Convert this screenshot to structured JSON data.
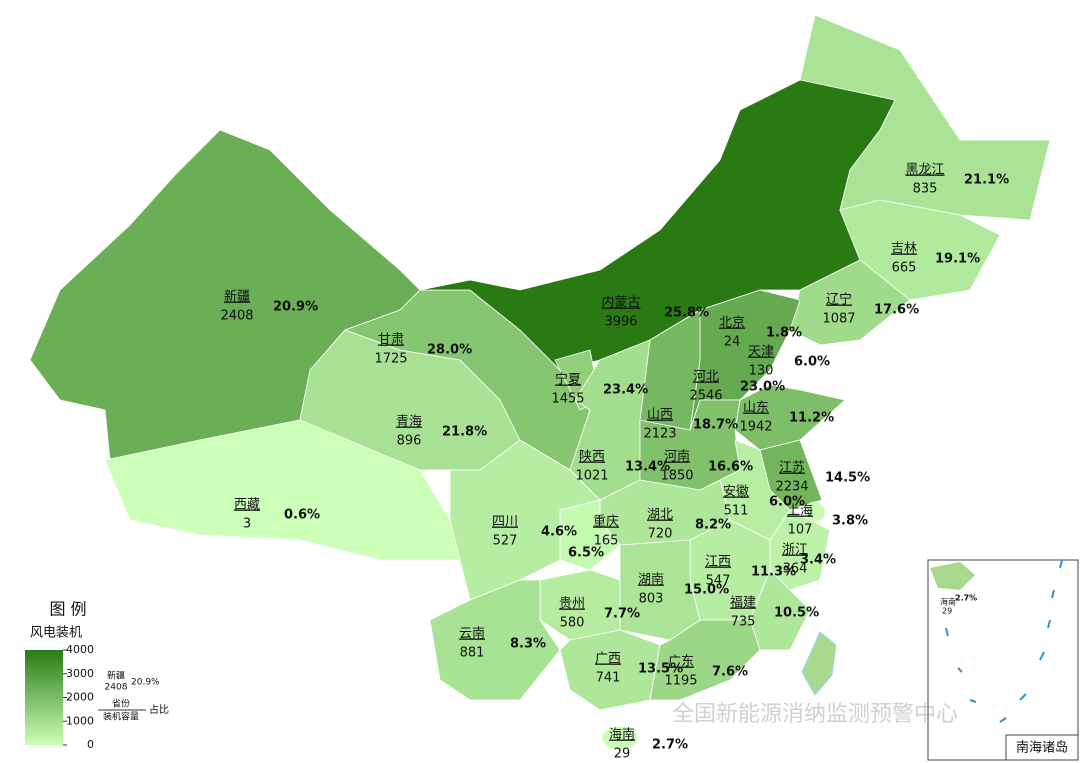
{
  "map": {
    "provinces": [
      {
        "name": "新疆",
        "capacity": 2408,
        "share": "20.9%"
      },
      {
        "name": "西藏",
        "capacity": 3,
        "share": "0.6%"
      },
      {
        "name": "青海",
        "capacity": 896,
        "share": "21.8%"
      },
      {
        "name": "甘肃",
        "capacity": 1725,
        "share": "28.0%"
      },
      {
        "name": "内蒙古",
        "capacity": 3996,
        "share": "25.8%"
      },
      {
        "name": "黑龙江",
        "capacity": 835,
        "share": "21.1%"
      },
      {
        "name": "吉林",
        "capacity": 665,
        "share": "19.1%"
      },
      {
        "name": "辽宁",
        "capacity": 1087,
        "share": "17.6%"
      },
      {
        "name": "北京",
        "capacity": 24,
        "share": "1.8%"
      },
      {
        "name": "天津",
        "capacity": 130,
        "share": "6.0%"
      },
      {
        "name": "河北",
        "capacity": 2546,
        "share": "23.0%"
      },
      {
        "name": "山西",
        "capacity": 2123,
        "share": "18.7%"
      },
      {
        "name": "山东",
        "capacity": 1942,
        "share": "11.2%"
      },
      {
        "name": "宁夏",
        "capacity": 1455,
        "share": "23.4%"
      },
      {
        "name": "陕西",
        "capacity": 1021,
        "share": "13.4%"
      },
      {
        "name": "河南",
        "capacity": 1850,
        "share": "16.6%"
      },
      {
        "name": "江苏",
        "capacity": 2234,
        "share": "14.5%"
      },
      {
        "name": "上海",
        "capacity": 107,
        "share": "3.8%"
      },
      {
        "name": "安徽",
        "capacity": 511,
        "share": "6.0%"
      },
      {
        "name": "湖北",
        "capacity": 720,
        "share": "8.2%"
      },
      {
        "name": "重庆",
        "capacity": 165,
        "share": "6.5%"
      },
      {
        "name": "四川",
        "capacity": 527,
        "share": "4.6%"
      },
      {
        "name": "浙江",
        "capacity": 364,
        "share": "3.4%"
      },
      {
        "name": "江西",
        "capacity": 547,
        "share": "11.3%"
      },
      {
        "name": "湖南",
        "capacity": 803,
        "share": "15.0%"
      },
      {
        "name": "贵州",
        "capacity": 580,
        "share": "7.7%"
      },
      {
        "name": "福建",
        "capacity": 735,
        "share": "10.5%"
      },
      {
        "name": "云南",
        "capacity": 881,
        "share": "8.3%"
      },
      {
        "name": "广西",
        "capacity": 741,
        "share": "13.5%"
      },
      {
        "name": "广东",
        "capacity": 1195,
        "share": "7.6%"
      },
      {
        "name": "海南",
        "capacity": 29,
        "share": "2.7%"
      }
    ],
    "legend": {
      "title": "图  例",
      "subtitle": "风电装机",
      "ticks": [
        4000,
        3000,
        2000,
        1000,
        0
      ],
      "example": {
        "province": "新疆",
        "capacity": "2408",
        "share": "20.9%",
        "province_label": "省份",
        "capacity_label": "装机容量",
        "share_label": "占比"
      }
    },
    "inset": {
      "title": "南海诸岛",
      "province": "海南",
      "capacity": "29",
      "share": "2.7%"
    },
    "watermark": "全国新能源消纳监测预警中心"
  }
}
